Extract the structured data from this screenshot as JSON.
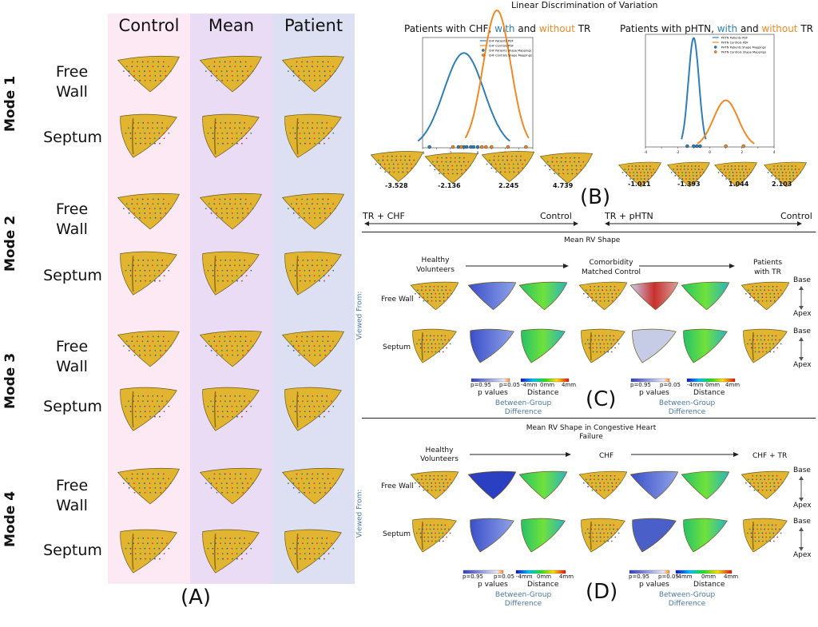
{
  "panelA": {
    "columns": [
      "Control",
      "Mean",
      "Patient"
    ],
    "modes": [
      "Mode 1",
      "Mode 2",
      "Mode 3",
      "Mode 4"
    ],
    "row_free": "Free\nWall",
    "row_free_1": "Free",
    "row_free_2": "Wall",
    "row_septum": "Septum",
    "label": "(A)",
    "colors": {
      "control": "#fce9f3",
      "mean": "#eadcf5",
      "patient": "#dde0f3"
    }
  },
  "panelB": {
    "title": "Linear Discrimination of Variation",
    "chf_title_pre": "Patients with CHF, ",
    "chf_title_with": "with",
    "chf_title_and": " and ",
    "chf_title_without": "without",
    "chf_title_post": " TR",
    "phtn_title_pre": "Patients with pHTN, ",
    "phtn_title_with": "with",
    "phtn_title_and": " and ",
    "phtn_title_without": "without",
    "phtn_title_post": " TR",
    "chf_values": [
      "-3.528",
      "-2.136",
      "2.245",
      "4.739"
    ],
    "phtn_values": [
      "-1.011",
      "-1.393",
      "1.044",
      "2.103"
    ],
    "chf_left": "TR + CHF",
    "chf_right": "Control",
    "phtn_left": "TR + pHTN",
    "phtn_right": "Control",
    "label": "(B)",
    "chf_legend": [
      "CHF Patients PDF",
      "CHF Controls PDF",
      "CHF Patients Shape Mappings",
      "CHF Controls Shape Mappings"
    ],
    "phtn_legend": [
      "PHTN Patients PDF",
      "PHTN Controls PDF",
      "PHTN Patients Shape Mappings",
      "PHTN Controls Shape Mappings"
    ]
  },
  "panelC": {
    "title": "Mean RV Shape",
    "stage1": "Healthy\nVolunteers",
    "stage1a": "Healthy",
    "stage1b": "Volunteers",
    "stage2a": "Comorbidity",
    "stage2b": "Matched Control",
    "stage3a": "Patients",
    "stage3b": "with TR",
    "viewed": "Viewed From:",
    "row_free": "Free Wall",
    "row_septum": "Septum",
    "base": "Base",
    "apex": "Apex",
    "pvalues": "p values",
    "distance": "Distance",
    "between1": "Between-Group",
    "between2": "Difference",
    "p95": "p=0.95",
    "p05": "p=0.05",
    "d_neg": "-4mm",
    "d_zero": "0mm",
    "d_pos": "4mm",
    "label": "(C)"
  },
  "panelD": {
    "title1": "Mean RV Shape in Congestive Heart",
    "title2": "Failure",
    "stage1a": "Healthy",
    "stage1b": "Volunteers",
    "stage2": "CHF",
    "stage3": "CHF + TR",
    "label": "(D)"
  },
  "chart_data": [
    {
      "type": "line",
      "title": "Patients with CHF, with and without TR",
      "xlim": [
        -4,
        4
      ],
      "ylim": [
        0,
        0.32
      ],
      "series": [
        {
          "name": "CHF Patients PDF",
          "color": "#2e7fb8",
          "mean": -1.0,
          "sd": 1.45
        },
        {
          "name": "CHF Controls PDF",
          "color": "#f08a24",
          "mean": 1.4,
          "sd": 1.0
        }
      ],
      "patient_points": [
        -3.5,
        -1.4,
        -1.0,
        -0.8,
        -0.5,
        -0.3,
        0.0
      ],
      "control_points": [
        -1.8,
        -1.2,
        0.3,
        0.6,
        1.0,
        2.2,
        3.5
      ]
    },
    {
      "type": "line",
      "title": "Patients with pHTN, with and without TR",
      "xlim": [
        -4,
        4
      ],
      "ylim": [
        0,
        1.25
      ],
      "series": [
        {
          "name": "PHTN Patients PDF",
          "color": "#2e7fb8",
          "mean": -1.0,
          "sd": 0.33
        },
        {
          "name": "PHTN Controls PDF",
          "color": "#f08a24",
          "mean": 1.0,
          "sd": 0.77
        }
      ],
      "patient_points": [
        -1.4,
        -1.0,
        -0.8,
        -0.6
      ],
      "control_points": [
        1.0,
        2.1
      ]
    }
  ]
}
